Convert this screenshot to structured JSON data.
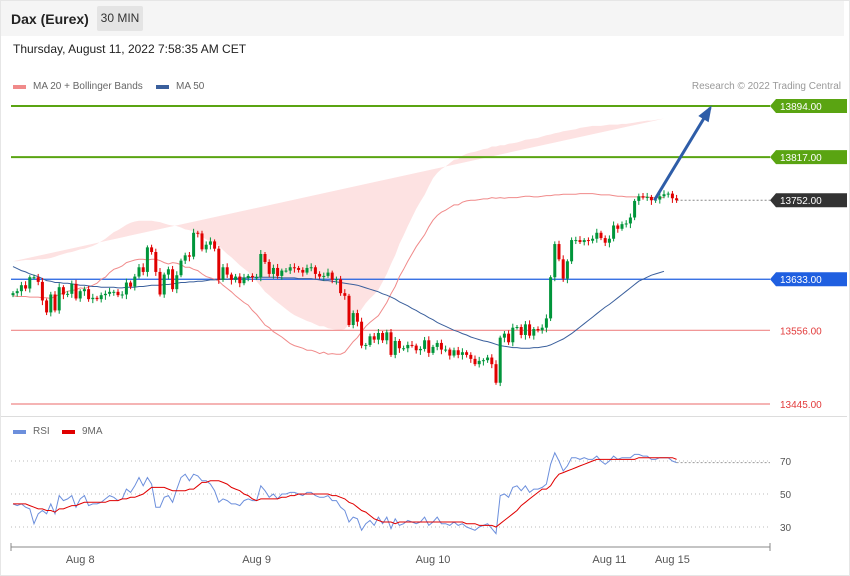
{
  "header": {
    "instrument": "Dax (Eurex)",
    "interval": "30 MIN",
    "datetime": "Thursday, August 11, 2022 7:58:35 AM CET"
  },
  "copyright": "Research © 2022 Trading Central",
  "colors": {
    "candle_up": "#00953a",
    "candle_down": "#e00000",
    "bollinger_fill": "#fde2e2",
    "ma20": "#f08a8a",
    "ma50": "#3a5f9c",
    "resistance": "#5aa412",
    "pivot": "#1f5fe0",
    "support": "#ef8888",
    "current": "#333333",
    "arrow": "#2e5da8",
    "rsi": "#6c8fdc",
    "rsi_ma": "#e00000"
  },
  "price_legend": [
    {
      "label": "MA 20 + Bollinger Bands",
      "color": "#f08a8a"
    },
    {
      "label": "MA 50",
      "color": "#3a5f9c"
    }
  ],
  "rsi_legend": [
    {
      "label": "RSI",
      "color": "#6c8fdc"
    },
    {
      "label": "9MA",
      "color": "#e00000"
    }
  ],
  "chart_data": [
    {
      "type": "candlestick",
      "ylim": [
        13440,
        13902
      ],
      "levels": [
        {
          "value": 13894.0,
          "label": "13894.00",
          "kind": "resistance"
        },
        {
          "value": 13817.0,
          "label": "13817.00",
          "kind": "resistance"
        },
        {
          "value": 13752.0,
          "label": "13752.00",
          "kind": "current"
        },
        {
          "value": 13633.0,
          "label": "13633.00",
          "kind": "pivot"
        },
        {
          "value": 13556.0,
          "label": "13556.00",
          "kind": "support"
        },
        {
          "value": 13445.0,
          "label": "13445.00",
          "kind": "support"
        }
      ],
      "target_arrow": {
        "from_index": 152,
        "from_value": 13752,
        "to_index": 166,
        "to_value": 13894
      },
      "x_ticks": [
        {
          "label": "Aug 8",
          "index": 16
        },
        {
          "label": "Aug 9",
          "index": 58
        },
        {
          "label": "Aug 10",
          "index": 100
        },
        {
          "label": "Aug 11",
          "index": 142
        },
        {
          "label": "Aug 15",
          "index": 157
        }
      ],
      "close": [
        13612,
        13615,
        13624,
        13619,
        13636,
        13636,
        13629,
        13601,
        13583,
        13610,
        13586,
        13621,
        13610,
        13611,
        13626,
        13604,
        13615,
        13618,
        13603,
        13605,
        13603,
        13609,
        13611,
        13614,
        13614,
        13609,
        13610,
        13628,
        13622,
        13637,
        13651,
        13644,
        13681,
        13674,
        13644,
        13610,
        13640,
        13648,
        13618,
        13639,
        13661,
        13669,
        13667,
        13703,
        13702,
        13678,
        13685,
        13690,
        13679,
        13632,
        13651,
        13640,
        13632,
        13637,
        13627,
        13635,
        13638,
        13636,
        13636,
        13671,
        13659,
        13641,
        13650,
        13638,
        13646,
        13646,
        13651,
        13650,
        13647,
        13643,
        13650,
        13651,
        13641,
        13637,
        13638,
        13643,
        13632,
        13633,
        13612,
        13608,
        13564,
        13582,
        13569,
        13533,
        13534,
        13547,
        13542,
        13552,
        13541,
        13553,
        13519,
        13540,
        13529,
        13529,
        13534,
        13533,
        13526,
        13528,
        13541,
        13522,
        13531,
        13537,
        13527,
        13527,
        13518,
        13526,
        13519,
        13523,
        13519,
        13513,
        13505,
        13510,
        13511,
        13515,
        13505,
        13477,
        13545,
        13551,
        13538,
        13560,
        13561,
        13549,
        13565,
        13548,
        13558,
        13556,
        13560,
        13574,
        13636,
        13686,
        13663,
        13634,
        13660,
        13692,
        13692,
        13689,
        13692,
        13691,
        13694,
        13703,
        13695,
        13688,
        13694,
        13714,
        13709,
        13716,
        13717,
        13726,
        13751,
        13758,
        13756,
        13757,
        13752,
        13753,
        13758,
        13761,
        13762,
        13755,
        13752
      ],
      "ma20": [
        13608,
        13607,
        13607,
        13607,
        13606,
        13606,
        13606,
        13605,
        13605,
        13604,
        13607,
        13610,
        13612,
        13615,
        13616,
        13617,
        13620,
        13619,
        13621,
        13624,
        13627,
        13633,
        13636,
        13643,
        13648,
        13650,
        13653,
        13658,
        13660,
        13662,
        13663,
        13663,
        13662,
        13663,
        13663,
        13661,
        13658,
        13656,
        13658,
        13657,
        13655,
        13651,
        13651,
        13648,
        13646,
        13641,
        13637,
        13635,
        13633,
        13630,
        13624,
        13619,
        13614,
        13608,
        13603,
        13598,
        13594,
        13586,
        13580,
        13572,
        13564,
        13560,
        13554,
        13550,
        13546,
        13541,
        13536,
        13533,
        13531,
        13529,
        13526,
        13526,
        13524,
        13521,
        13523,
        13520,
        13521,
        13520,
        13520,
        13523,
        13531,
        13539,
        13545,
        13554,
        13562,
        13568,
        13573,
        13578,
        13588,
        13598,
        13611,
        13622,
        13637,
        13648,
        13660,
        13671,
        13682,
        13691,
        13700,
        13712,
        13722,
        13729,
        13734,
        13737,
        13741,
        13745,
        13745,
        13749,
        13751,
        13752,
        13752,
        13753,
        13754,
        13754,
        13756,
        13755,
        13756,
        13755,
        13756,
        13756,
        13756,
        13757,
        13758,
        13758,
        13757,
        13757,
        13758,
        13759,
        13759,
        13760,
        13760,
        13761,
        13761,
        13761,
        13761,
        13762,
        13762,
        13762,
        13762,
        13761,
        13760,
        13760,
        13760,
        13759,
        13758,
        13758,
        13757,
        13757,
        13757,
        13757,
        13757,
        13757,
        13756,
        13756,
        13756,
        13756
      ],
      "bb_upper": [
        13660,
        13660,
        13661,
        13662,
        13662,
        13662,
        13663,
        13663,
        13664,
        13665,
        13667,
        13669,
        13671,
        13673,
        13674,
        13676,
        13678,
        13679,
        13681,
        13683,
        13686,
        13690,
        13694,
        13699,
        13704,
        13707,
        13711,
        13715,
        13718,
        13720,
        13721,
        13721,
        13721,
        13721,
        13720,
        13719,
        13717,
        13715,
        13714,
        13713,
        13711,
        13708,
        13707,
        13704,
        13701,
        13697,
        13693,
        13690,
        13687,
        13683,
        13677,
        13671,
        13666,
        13660,
        13654,
        13649,
        13644,
        13636,
        13630,
        13622,
        13614,
        13609,
        13603,
        13598,
        13593,
        13588,
        13583,
        13579,
        13576,
        13573,
        13570,
        13568,
        13565,
        13562,
        13562,
        13559,
        13558,
        13557,
        13556,
        13558,
        13565,
        13573,
        13579,
        13588,
        13597,
        13604,
        13610,
        13617,
        13629,
        13641,
        13656,
        13669,
        13686,
        13699,
        13713,
        13726,
        13739,
        13750,
        13760,
        13773,
        13785,
        13793,
        13799,
        13803,
        13808,
        13813,
        13814,
        13819,
        13822,
        13824,
        13825,
        13827,
        13829,
        13830,
        13833,
        13833,
        13835,
        13835,
        13837,
        13838,
        13839,
        13841,
        13843,
        13844,
        13845,
        13846,
        13848,
        13850,
        13851,
        13853,
        13854,
        13856,
        13857,
        13858,
        13859,
        13861,
        13862,
        13863,
        13864,
        13864,
        13864,
        13865,
        13866,
        13866,
        13866,
        13867,
        13867,
        13868,
        13869,
        13870,
        13871,
        13872,
        13872,
        13873,
        13874,
        13875
      ],
      "bb_lower": [
        13556,
        13555,
        13554,
        13553,
        13551,
        13550,
        13549,
        13547,
        13546,
        13544,
        13547,
        13550,
        13552,
        13555,
        13556,
        13557,
        13561,
        13559,
        13561,
        13564,
        13566,
        13574,
        13577,
        13587,
        13592,
        13593,
        13595,
        13601,
        13602,
        13603,
        13604,
        13603,
        13603,
        13604,
        13604,
        13601,
        13598,
        13597,
        13601,
        13599,
        13598,
        13593,
        13594,
        13591,
        13590,
        13584,
        13580,
        13579,
        13578,
        13577,
        13571,
        13566,
        13561,
        13555,
        13551,
        13546,
        13543,
        13535,
        13530,
        13522,
        13514,
        13511,
        13505,
        13502,
        13498,
        13494,
        13489,
        13487,
        13486,
        13484,
        13482,
        13483,
        13482,
        13480,
        13483,
        13480,
        13483,
        13482,
        13483,
        13487,
        13496,
        13504,
        13510,
        13519,
        13527,
        13532,
        13536,
        13539,
        13547,
        13555,
        13566,
        13575,
        13588,
        13597,
        13607,
        13617,
        13626,
        13633,
        13640,
        13650,
        13658,
        13664,
        13668,
        13671,
        13674,
        13677,
        13676,
        13679,
        13680,
        13680,
        13679,
        13679,
        13679,
        13678,
        13679,
        13677,
        13676,
        13675,
        13675,
        13674,
        13673,
        13673,
        13673,
        13672,
        13670,
        13669,
        13668,
        13668,
        13667,
        13667,
        13666,
        13665,
        13664,
        13663,
        13662,
        13662,
        13661,
        13660,
        13659,
        13658,
        13656,
        13655,
        13654,
        13653,
        13651,
        13649,
        13647,
        13646,
        13645,
        13644,
        13643,
        13642,
        13640,
        13639,
        13638,
        13637
      ],
      "ma50": [
        13652,
        13649,
        13646,
        13644,
        13641,
        13639,
        13637,
        13634,
        13631,
        13630,
        13628,
        13628,
        13627,
        13627,
        13626,
        13625,
        13624,
        13624,
        13623,
        13622,
        13622,
        13621,
        13621,
        13621,
        13621,
        13620,
        13620,
        13621,
        13621,
        13621,
        13622,
        13622,
        13623,
        13624,
        13624,
        13624,
        13625,
        13625,
        13626,
        13627,
        13628,
        13628,
        13629,
        13629,
        13630,
        13630,
        13631,
        13632,
        13632,
        13633,
        13633,
        13633,
        13634,
        13634,
        13635,
        13635,
        13635,
        13636,
        13636,
        13636,
        13636,
        13636,
        13636,
        13636,
        13635,
        13635,
        13635,
        13635,
        13634,
        13634,
        13634,
        13634,
        13633,
        13632,
        13631,
        13631,
        13630,
        13629,
        13628,
        13627,
        13626,
        13625,
        13624,
        13622,
        13620,
        13618,
        13616,
        13614,
        13611,
        13609,
        13606,
        13603,
        13599,
        13596,
        13593,
        13589,
        13586,
        13582,
        13579,
        13575,
        13572,
        13568,
        13565,
        13562,
        13559,
        13556,
        13554,
        13551,
        13549,
        13546,
        13544,
        13542,
        13540,
        13539,
        13537,
        13535,
        13533,
        13532,
        13531,
        13530,
        13530,
        13529,
        13529,
        13529,
        13530,
        13530,
        13531,
        13532,
        13534,
        13537,
        13540,
        13543,
        13547,
        13551,
        13556,
        13561,
        13566,
        13571,
        13576,
        13581,
        13586,
        13591,
        13595,
        13600,
        13605,
        13610,
        13615,
        13620,
        13625,
        13630,
        13633,
        13636,
        13639,
        13641,
        13643,
        13645
      ]
    },
    {
      "type": "line",
      "ylabel": "RSI",
      "ylim": [
        20,
        80
      ],
      "y_ticks": [
        70,
        50,
        30
      ],
      "series": [
        {
          "name": "RSI",
          "values": [
            44,
            43,
            44,
            42,
            41,
            32,
            38,
            40,
            38,
            44,
            38,
            49,
            46,
            47,
            49,
            42,
            47,
            49,
            43,
            44,
            44,
            45,
            47,
            49,
            48,
            46,
            47,
            53,
            51,
            55,
            60,
            55,
            60,
            56,
            42,
            42,
            48,
            49,
            45,
            53,
            60,
            62,
            58,
            62,
            61,
            58,
            58,
            56,
            52,
            45,
            47,
            46,
            44,
            44,
            43,
            46,
            47,
            46,
            46,
            55,
            52,
            48,
            50,
            47,
            50,
            50,
            51,
            51,
            50,
            49,
            51,
            51,
            49,
            48,
            48,
            49,
            46,
            46,
            42,
            40,
            33,
            36,
            35,
            28,
            32,
            34,
            31,
            36,
            32,
            36,
            29,
            35,
            31,
            32,
            34,
            33,
            32,
            33,
            36,
            31,
            33,
            36,
            32,
            32,
            31,
            33,
            31,
            32,
            30,
            29,
            28,
            30,
            31,
            32,
            29,
            26,
            49,
            50,
            48,
            54,
            55,
            52,
            55,
            51,
            53,
            53,
            54,
            56,
            68,
            75,
            70,
            64,
            67,
            72,
            72,
            71,
            72,
            71,
            71,
            73,
            70,
            68,
            70,
            73,
            71,
            72,
            72,
            72,
            74,
            74,
            73,
            73,
            71,
            71,
            72,
            72,
            72,
            70,
            69
          ]
        },
        {
          "name": "9MA",
          "values": [
            44,
            44,
            44,
            44,
            43,
            42,
            41,
            41,
            40,
            40,
            39,
            41,
            41,
            42,
            43,
            43,
            44,
            45,
            45,
            45,
            45,
            45,
            45,
            46,
            46,
            46,
            47,
            47,
            48,
            48,
            49,
            50,
            52,
            54,
            54,
            54,
            54,
            53,
            52,
            52,
            52,
            52,
            53,
            53,
            55,
            57,
            57,
            58,
            58,
            58,
            57,
            56,
            54,
            53,
            52,
            50,
            49,
            47,
            46,
            47,
            47,
            47,
            47,
            47,
            48,
            48,
            49,
            49,
            50,
            50,
            50,
            50,
            50,
            50,
            50,
            50,
            49,
            49,
            48,
            47,
            45,
            44,
            42,
            40,
            39,
            37,
            35,
            34,
            33,
            33,
            33,
            32,
            33,
            33,
            33,
            33,
            33,
            33,
            33,
            33,
            33,
            33,
            33,
            33,
            33,
            33,
            33,
            33,
            32,
            32,
            32,
            31,
            31,
            31,
            31,
            30,
            32,
            34,
            36,
            38,
            40,
            43,
            45,
            47,
            49,
            51,
            53,
            53,
            55,
            59,
            62,
            63,
            64,
            65,
            66,
            67,
            68,
            69,
            70,
            71,
            71,
            71,
            71,
            71,
            71,
            71,
            71,
            71,
            71,
            72,
            72,
            72,
            72,
            72,
            72,
            72,
            72,
            72,
            71
          ]
        }
      ]
    }
  ]
}
